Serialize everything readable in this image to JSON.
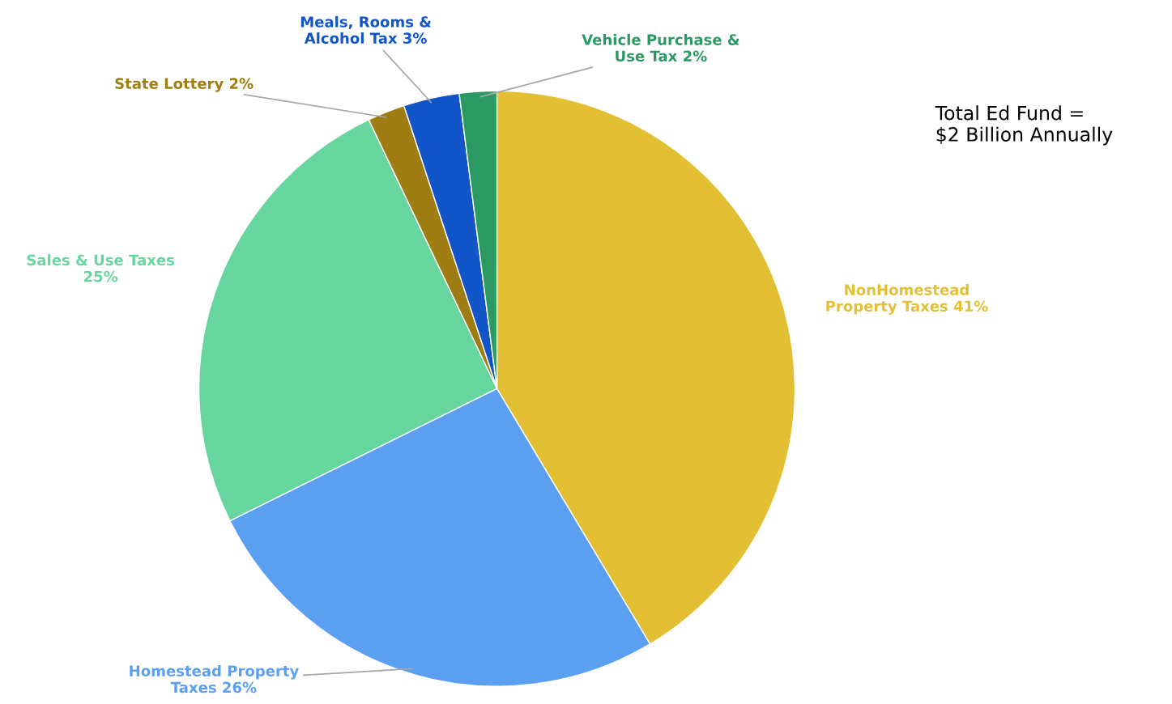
{
  "chart_data": {
    "type": "pie",
    "categories": [
      "NonHomestead\nProperty Taxes",
      "Homestead Property\nTaxes",
      "Sales & Use Taxes",
      "State Lottery",
      "Meals, Rooms &\nAlcohol Tax",
      "Vehicle Purchase &\nUse Tax"
    ],
    "values": [
      41,
      26,
      25,
      2,
      3,
      2
    ],
    "value_labels": [
      "41%",
      "26%",
      "25%",
      "2%",
      "3%",
      "2%"
    ],
    "colors": [
      "#e3c033",
      "#5b9ff0",
      "#66d69e",
      "#a07d13",
      "#1155c9",
      "#2b9a62"
    ],
    "annotations": [
      "Total Ed Fund =\n$2 Billion Annually"
    ],
    "legend": false
  }
}
